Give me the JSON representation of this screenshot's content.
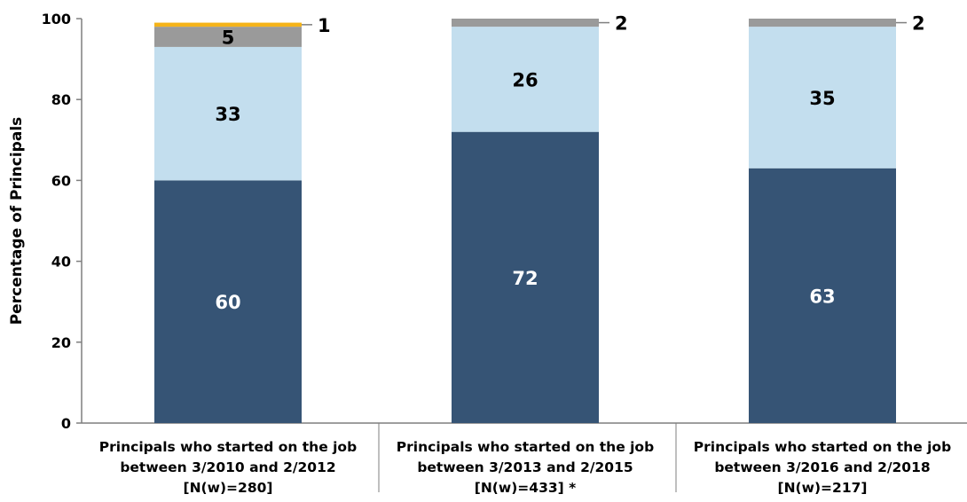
{
  "chart_data": {
    "type": "bar",
    "stacked": true,
    "ylabel": "Percentage of Principals",
    "xlabel": "",
    "ylim": [
      0,
      100
    ],
    "yticks": [
      "0",
      "20",
      "40",
      "60",
      "80",
      "100"
    ],
    "grid": false,
    "categories": [
      [
        "Principals who started on the job",
        "between 3/2010 and 2/2012",
        "[N(w)=280]"
      ],
      [
        "Principals who started on the job",
        "between 3/2013 and 2/2015",
        "[N(w)=433] *"
      ],
      [
        "Principals who started on the job",
        "between 3/2016 and 2/2018",
        "[N(w)=217]"
      ]
    ],
    "series": [
      {
        "color": "#365475",
        "label_color": "#ffffff",
        "values": [
          60,
          72,
          63
        ],
        "labels": [
          "60",
          "72",
          "63"
        ],
        "label_position": "inside"
      },
      {
        "color": "#c3deee",
        "label_color": "#000000",
        "values": [
          33,
          26,
          35
        ],
        "labels": [
          "33",
          "26",
          "35"
        ],
        "label_position": "inside"
      },
      {
        "color": "#9a9a9a",
        "label_color": "#000000",
        "values": [
          5,
          2,
          2
        ],
        "labels": [
          "5",
          "2",
          "2"
        ],
        "label_position": [
          "inside",
          "outside",
          "outside"
        ]
      },
      {
        "color": "#f5b319",
        "label_color": "#000000",
        "values": [
          1,
          0,
          0
        ],
        "labels": [
          "1",
          "",
          ""
        ],
        "label_position": [
          "outside",
          "none",
          "none"
        ]
      }
    ]
  }
}
